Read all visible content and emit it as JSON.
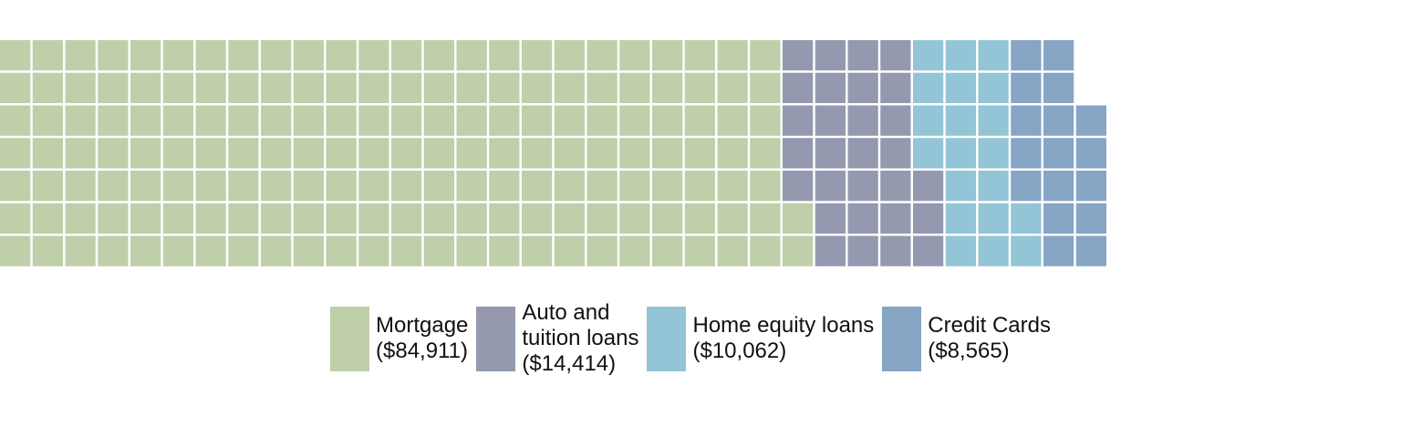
{
  "chart_data": {
    "type": "waffle",
    "title": "",
    "rows": 7,
    "unit_value": 500,
    "series": [
      {
        "name": "Mortgage",
        "value": 84911,
        "color": "#bfcfa9"
      },
      {
        "name": "Auto and tuition loans",
        "value": 14414,
        "color": "#9499b0"
      },
      {
        "name": "Home equity loans",
        "value": 10062,
        "color": "#93c5d6"
      },
      {
        "name": "Credit Cards",
        "value": 8565,
        "color": "#87a5c4"
      }
    ]
  },
  "legend": {
    "items": [
      {
        "label": "Mortgage\n($84,911)"
      },
      {
        "label": "Auto and\ntuition loans\n($14,414)"
      },
      {
        "label": "Home equity loans\n($10,062)"
      },
      {
        "label": "Credit Cards\n($8,565)"
      }
    ]
  }
}
